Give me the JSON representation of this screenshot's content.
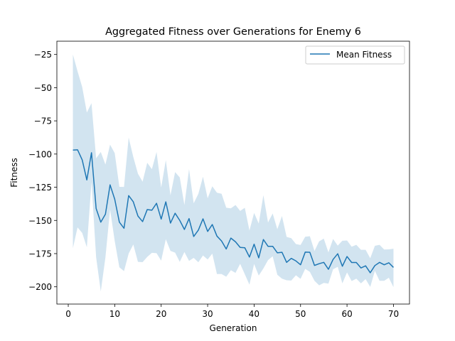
{
  "chart_data": {
    "type": "line",
    "title": "Aggregated Fitness over Generations for Enemy 6",
    "xlabel": "Generation",
    "ylabel": "Fitness",
    "xlim": [
      -2.45,
      73.45
    ],
    "ylim": [
      -213,
      -15
    ],
    "xticks": [
      0,
      10,
      20,
      30,
      40,
      50,
      60,
      70
    ],
    "yticks": [
      -25,
      -50,
      -75,
      -100,
      -125,
      -150,
      -175,
      -200
    ],
    "grid": false,
    "legend": {
      "position": "top-right",
      "entries": [
        "Mean Fitness"
      ]
    },
    "colors": {
      "line": "#1f77b4",
      "band": "#1f77b4",
      "band_opacity": 0.2
    },
    "series": [
      {
        "name": "Mean Fitness",
        "x": [
          1,
          2,
          3,
          4,
          5,
          6,
          7,
          8,
          9,
          10,
          11,
          12,
          13,
          14,
          15,
          16,
          17,
          18,
          19,
          20,
          21,
          22,
          23,
          24,
          25,
          26,
          27,
          28,
          29,
          30,
          31,
          32,
          33,
          34,
          35,
          36,
          37,
          38,
          39,
          40,
          41,
          42,
          43,
          44,
          45,
          46,
          47,
          48,
          49,
          50,
          51,
          52,
          53,
          54,
          55,
          56,
          57,
          58,
          59,
          60,
          61,
          62,
          63,
          64,
          65,
          66,
          67,
          68,
          69,
          70
        ],
        "mean": [
          -97,
          -96.8,
          -104.4,
          -119.5,
          -99,
          -141,
          -151.3,
          -145.3,
          -123.2,
          -134,
          -151.3,
          -155.9,
          -131.3,
          -136,
          -146.7,
          -150.9,
          -141.8,
          -142.3,
          -137.1,
          -149,
          -136,
          -152,
          -144.6,
          -150,
          -156.8,
          -148.6,
          -162.1,
          -157.3,
          -148.8,
          -158.3,
          -153.1,
          -161.8,
          -165.5,
          -171.5,
          -163.3,
          -166.1,
          -170.3,
          -170.6,
          -177.6,
          -167.9,
          -178.2,
          -164.4,
          -169.5,
          -169.5,
          -174.4,
          -174,
          -181.6,
          -178.6,
          -180.5,
          -183.4,
          -173.9,
          -174,
          -183.9,
          -182.6,
          -181.6,
          -186.8,
          -179.4,
          -175.1,
          -184.5,
          -177.2,
          -181.7,
          -181.7,
          -185.8,
          -184.2,
          -189.4,
          -184,
          -181.6,
          -183.4,
          -181.9,
          -185.4
        ],
        "upper": [
          -25,
          -37.7,
          -49.5,
          -68.7,
          -61.7,
          -103.2,
          -98.4,
          -107.9,
          -92.9,
          -99.3,
          -124.7,
          -124.8,
          -87.6,
          -102.2,
          -114.8,
          -120.8,
          -106.6,
          -111.4,
          -98.5,
          -125.2,
          -104.6,
          -131.1,
          -113.6,
          -117.6,
          -138.4,
          -111.4,
          -137.1,
          -130,
          -117.1,
          -133.3,
          -124.3,
          -129.1,
          -129.9,
          -140.4,
          -140.9,
          -138.4,
          -142.8,
          -140.5,
          -157.6,
          -144.4,
          -152.3,
          -131,
          -151.5,
          -144.8,
          -156.6,
          -146.7,
          -162.4,
          -163.4,
          -167.8,
          -168.5,
          -162.3,
          -161.9,
          -173,
          -165.8,
          -163.7,
          -174.1,
          -164,
          -169,
          -165.3,
          -165.1,
          -169.8,
          -168.4,
          -172.1,
          -172.1,
          -178.5,
          -169.1,
          -168.4,
          -171.9,
          -171.8,
          -171.3
        ],
        "lower": [
          -170.9,
          -155.3,
          -159.4,
          -170.2,
          -121.1,
          -177.8,
          -203.5,
          -177.9,
          -141.7,
          -165.5,
          -185.3,
          -188.2,
          -175,
          -168.1,
          -181.2,
          -181.4,
          -177.5,
          -174.4,
          -174.7,
          -180.3,
          -164.2,
          -172.9,
          -174.3,
          -181.2,
          -173.8,
          -180.5,
          -178.2,
          -181.5,
          -176.4,
          -179.4,
          -175,
          -190.4,
          -190.4,
          -192.4,
          -187.5,
          -189.5,
          -182.7,
          -190.5,
          -198.4,
          -182.8,
          -191.5,
          -186.2,
          -179.9,
          -177,
          -190.9,
          -193.9,
          -195.1,
          -195.3,
          -191.3,
          -194,
          -186.5,
          -188.7,
          -195.5,
          -198.9,
          -197.1,
          -197.6,
          -186.8,
          -185,
          -197.4,
          -189.2,
          -195.7,
          -193.9,
          -197.4,
          -194.2,
          -200.1,
          -188,
          -195.5,
          -195.5,
          -193.2,
          -200.2
        ]
      }
    ]
  }
}
